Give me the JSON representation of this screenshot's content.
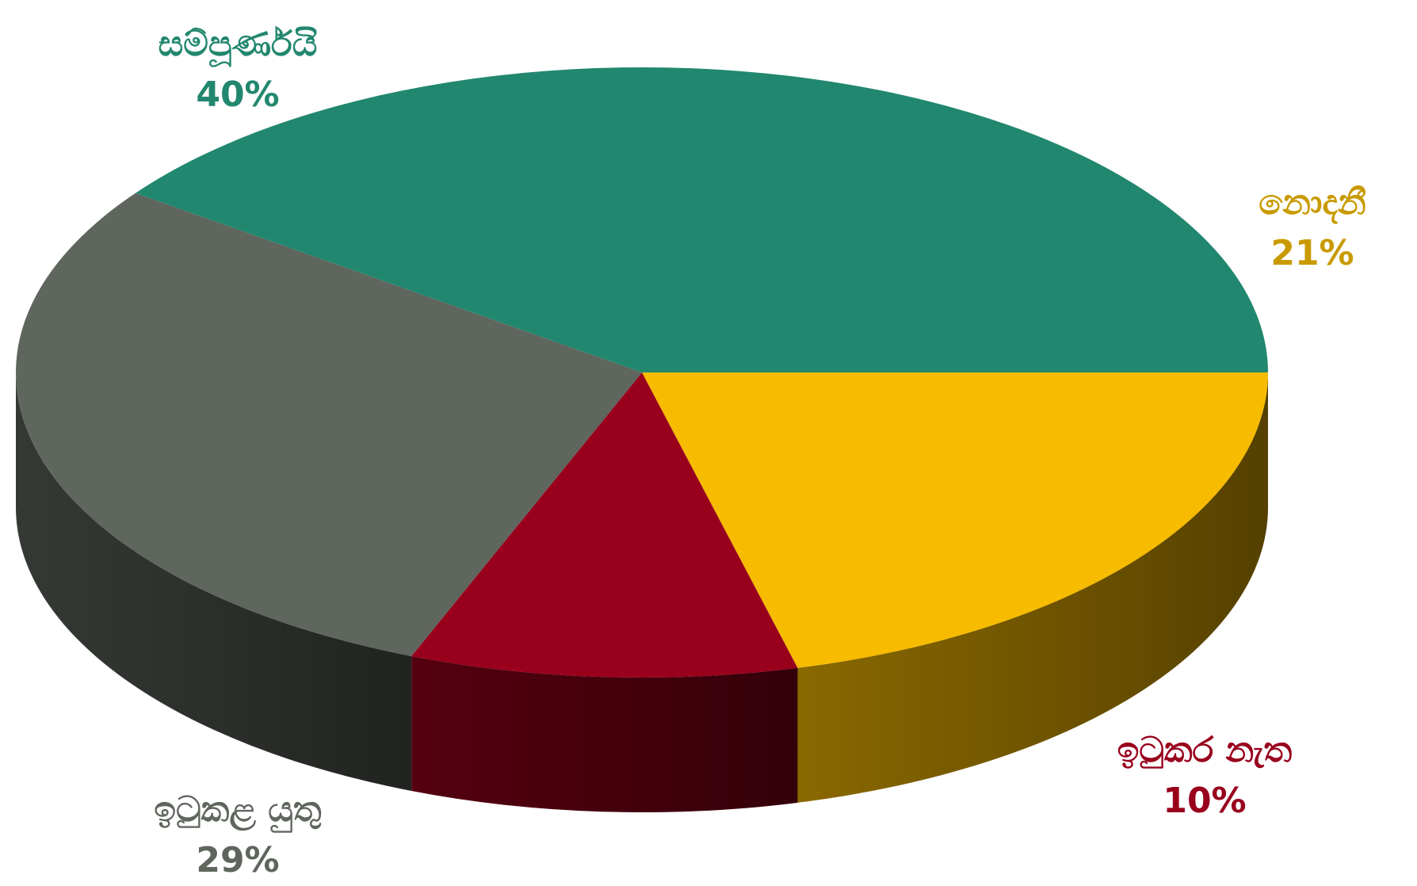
{
  "chart_data": {
    "type": "pie",
    "style": "3d",
    "start_angle_deg": 0,
    "direction": "clockwise",
    "slices": [
      {
        "label": "නොදනී",
        "value": 21,
        "value_label": "21%",
        "color": "#f7bb00"
      },
      {
        "label": "ඉටුකර නැත",
        "value": 10,
        "value_label": "10%",
        "color": "#98001c"
      },
      {
        "label": "ඉටුකළ යුතු",
        "value": 29,
        "value_label": "29%",
        "color": "#5f665d"
      },
      {
        "label": "සම්පූර්ණයි",
        "value": 40,
        "value_label": "40%",
        "color": "#22876f"
      }
    ]
  }
}
